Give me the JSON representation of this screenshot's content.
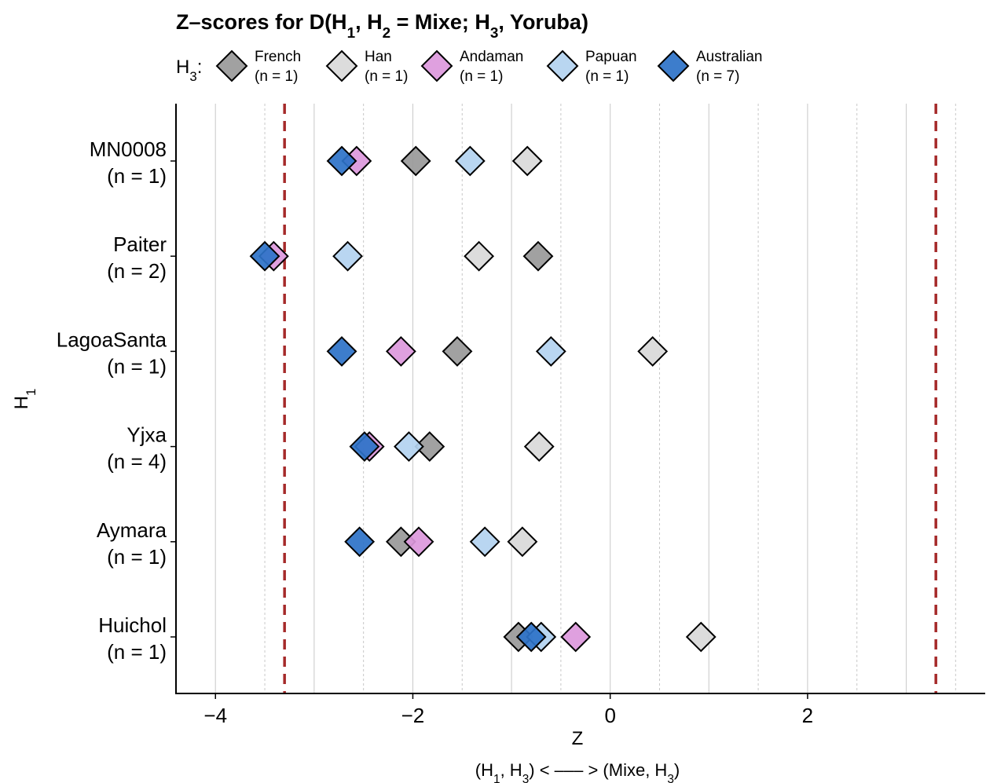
{
  "chart_data": {
    "type": "scatter",
    "title": "Z–scores for D(H₁, H₂ = Mixe; H₃, Yoruba)",
    "xlabel": "Z",
    "xlabel_caption": "(H₁, H₃) < ––– > (Mixe, H₃)",
    "ylabel": "H₁",
    "xlim": [
      -4.4,
      3.8
    ],
    "xticks": [
      -4,
      -2,
      0,
      2
    ],
    "xtick_labels": [
      "−4",
      "−2",
      "0",
      "2"
    ],
    "reference_lines": [
      -3.3,
      3.3
    ],
    "categories": [
      {
        "name": "MN0008",
        "n": "(n = 1)"
      },
      {
        "name": "Paiter",
        "n": "(n = 2)"
      },
      {
        "name": "LagoaSanta",
        "n": "(n = 1)"
      },
      {
        "name": "Yjxa",
        "n": "(n = 4)"
      },
      {
        "name": "Aymara",
        "n": "(n = 1)"
      },
      {
        "name": "Huichol",
        "n": "(n = 1)"
      }
    ],
    "legend": {
      "prefix": "H₃:",
      "position": "top"
    },
    "series": [
      {
        "name": "French",
        "n": "(n = 1)",
        "color": "#999999",
        "values": [
          -1.97,
          -0.73,
          -1.55,
          -1.83,
          -2.12,
          -0.93
        ]
      },
      {
        "name": "Han",
        "n": "(n = 1)",
        "color": "#d9d9d9",
        "values": [
          -0.84,
          -1.33,
          0.43,
          -0.72,
          -0.89,
          0.92
        ]
      },
      {
        "name": "Andaman",
        "n": "(n = 1)",
        "color": "#dc98dc",
        "values": [
          -2.57,
          -3.41,
          -2.12,
          -2.44,
          -1.94,
          -0.35
        ]
      },
      {
        "name": "Papuan",
        "n": "(n = 1)",
        "color": "#b3d3f0",
        "values": [
          -1.42,
          -2.66,
          -0.6,
          -2.04,
          -1.27,
          -0.7
        ]
      },
      {
        "name": "Australian",
        "n": "(n = 7)",
        "color": "#2c72c8",
        "values": [
          -2.72,
          -3.5,
          -2.72,
          -2.49,
          -2.54,
          -0.8
        ]
      }
    ]
  }
}
